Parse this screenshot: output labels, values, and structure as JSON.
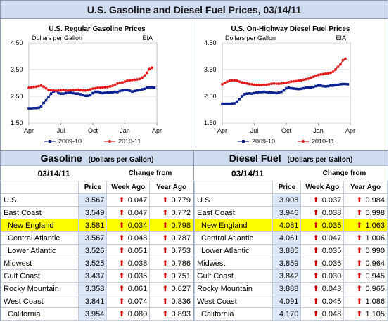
{
  "title": "U.S. Gasoline and Diesel Fuel Prices, 03/14/11",
  "chart_data": [
    {
      "type": "line",
      "title": "U.S. Regular Gasoline Prices",
      "ylabel": "Dollars per Gallon",
      "source": "EIA",
      "ylim": [
        1.5,
        4.5
      ],
      "yticks": [
        "4.50",
        "3.50",
        "2.50",
        "1.50"
      ],
      "xticks": [
        "Apr",
        "Jul",
        "Oct",
        "Jan",
        "Apr"
      ],
      "xlim": [
        0,
        52
      ],
      "series": [
        {
          "name": "2009-10",
          "color": "#0b1f8f",
          "x": [
            0,
            1,
            2,
            3,
            4,
            5,
            6,
            7,
            8,
            9,
            10,
            11,
            12,
            13,
            14,
            15,
            16,
            17,
            18,
            19,
            20,
            21,
            22,
            23,
            24,
            25,
            26,
            27,
            28,
            29,
            30,
            31,
            32,
            33,
            34,
            35,
            36,
            37,
            38,
            39,
            40,
            41,
            42,
            43,
            44,
            45,
            46,
            47,
            48,
            49,
            50,
            51
          ],
          "values": [
            2.05,
            2.05,
            2.06,
            2.06,
            2.07,
            2.13,
            2.25,
            2.35,
            2.48,
            2.6,
            2.68,
            2.7,
            2.62,
            2.6,
            2.6,
            2.62,
            2.64,
            2.64,
            2.62,
            2.6,
            2.6,
            2.58,
            2.55,
            2.52,
            2.52,
            2.55,
            2.62,
            2.67,
            2.67,
            2.65,
            2.62,
            2.63,
            2.64,
            2.65,
            2.64,
            2.67,
            2.66,
            2.7,
            2.72,
            2.73,
            2.73,
            2.71,
            2.68,
            2.7,
            2.72,
            2.73,
            2.76,
            2.78,
            2.82,
            2.84,
            2.84,
            2.82
          ]
        },
        {
          "name": "2010-11",
          "color": "#e31a1c",
          "x": [
            0,
            1,
            2,
            3,
            4,
            5,
            6,
            7,
            8,
            9,
            10,
            11,
            12,
            13,
            14,
            15,
            16,
            17,
            18,
            19,
            20,
            21,
            22,
            23,
            24,
            25,
            26,
            27,
            28,
            29,
            30,
            31,
            32,
            33,
            34,
            35,
            36,
            37,
            38,
            39,
            40,
            41,
            42,
            43,
            44,
            45,
            46,
            47,
            48,
            49,
            50
          ],
          "values": [
            2.82,
            2.84,
            2.85,
            2.86,
            2.88,
            2.9,
            2.86,
            2.8,
            2.74,
            2.73,
            2.72,
            2.71,
            2.72,
            2.72,
            2.74,
            2.72,
            2.72,
            2.73,
            2.74,
            2.74,
            2.75,
            2.73,
            2.72,
            2.72,
            2.73,
            2.76,
            2.79,
            2.8,
            2.82,
            2.82,
            2.83,
            2.84,
            2.85,
            2.87,
            2.89,
            2.93,
            2.98,
            3.0,
            3.02,
            3.05,
            3.08,
            3.1,
            3.11,
            3.12,
            3.13,
            3.15,
            3.2,
            3.28,
            3.38,
            3.52,
            3.57
          ]
        }
      ]
    },
    {
      "type": "line",
      "title": "U.S. On-Highway Diesel Fuel Prices",
      "ylabel": "Dollars per Gallon",
      "source": "EIA",
      "ylim": [
        1.5,
        4.5
      ],
      "yticks": [
        "4.50",
        "3.50",
        "2.50",
        "1.50"
      ],
      "xticks": [
        "Apr",
        "Jul",
        "Oct",
        "Jan",
        "Apr"
      ],
      "xlim": [
        0,
        52
      ],
      "series": [
        {
          "name": "2009-10",
          "color": "#0b1f8f",
          "x": [
            0,
            1,
            2,
            3,
            4,
            5,
            6,
            7,
            8,
            9,
            10,
            11,
            12,
            13,
            14,
            15,
            16,
            17,
            18,
            19,
            20,
            21,
            22,
            23,
            24,
            25,
            26,
            27,
            28,
            29,
            30,
            31,
            32,
            33,
            34,
            35,
            36,
            37,
            38,
            39,
            40,
            41,
            42,
            43,
            44,
            45,
            46,
            47,
            48,
            49,
            50,
            51
          ],
          "values": [
            2.22,
            2.22,
            2.22,
            2.22,
            2.23,
            2.24,
            2.3,
            2.4,
            2.5,
            2.58,
            2.6,
            2.61,
            2.6,
            2.62,
            2.64,
            2.66,
            2.66,
            2.67,
            2.66,
            2.64,
            2.64,
            2.63,
            2.62,
            2.64,
            2.67,
            2.72,
            2.8,
            2.82,
            2.8,
            2.79,
            2.78,
            2.77,
            2.78,
            2.8,
            2.82,
            2.83,
            2.82,
            2.85,
            2.88,
            2.9,
            2.9,
            2.88,
            2.87,
            2.88,
            2.9,
            2.9,
            2.92,
            2.93,
            2.95,
            2.96,
            2.96,
            2.95
          ]
        },
        {
          "name": "2010-11",
          "color": "#e31a1c",
          "x": [
            0,
            1,
            2,
            3,
            4,
            5,
            6,
            7,
            8,
            9,
            10,
            11,
            12,
            13,
            14,
            15,
            16,
            17,
            18,
            19,
            20,
            21,
            22,
            23,
            24,
            25,
            26,
            27,
            28,
            29,
            30,
            31,
            32,
            33,
            34,
            35,
            36,
            37,
            38,
            39,
            40,
            41,
            42,
            43,
            44,
            45,
            46,
            47,
            48,
            49,
            50
          ],
          "values": [
            2.95,
            3.0,
            3.05,
            3.08,
            3.1,
            3.1,
            3.08,
            3.05,
            3.02,
            3.0,
            2.98,
            2.96,
            2.95,
            2.93,
            2.92,
            2.92,
            2.92,
            2.93,
            2.93,
            2.95,
            2.97,
            2.98,
            2.97,
            2.97,
            2.98,
            2.99,
            3.01,
            3.03,
            3.05,
            3.06,
            3.07,
            3.08,
            3.1,
            3.12,
            3.14,
            3.16,
            3.2,
            3.23,
            3.27,
            3.3,
            3.32,
            3.33,
            3.35,
            3.36,
            3.38,
            3.42,
            3.5,
            3.6,
            3.7,
            3.85,
            3.91
          ]
        }
      ]
    }
  ],
  "gasoline": {
    "heading": "Gasoline",
    "units": "(Dollars per Gallon)",
    "date": "03/14/11",
    "change_from": "Change from",
    "col_price": "Price",
    "col_week": "Week Ago",
    "col_year": "Year Ago",
    "rows": [
      {
        "region": "U.S.",
        "price": "3.567",
        "week": "0.047",
        "year": "0.779",
        "sub": false,
        "highlight": false
      },
      {
        "region": "East Coast",
        "price": "3.549",
        "week": "0.047",
        "year": "0.772",
        "sub": false,
        "highlight": false
      },
      {
        "region": "New England",
        "price": "3.581",
        "week": "0.034",
        "year": "0.798",
        "sub": true,
        "highlight": true
      },
      {
        "region": "Central Atlantic",
        "price": "3.567",
        "week": "0.048",
        "year": "0.787",
        "sub": true,
        "highlight": false
      },
      {
        "region": "Lower Atlantic",
        "price": "3.526",
        "week": "0.051",
        "year": "0.753",
        "sub": true,
        "highlight": false
      },
      {
        "region": "Midwest",
        "price": "3.525",
        "week": "0.038",
        "year": "0.786",
        "sub": false,
        "highlight": false
      },
      {
        "region": "Gulf Coast",
        "price": "3.437",
        "week": "0.035",
        "year": "0.751",
        "sub": false,
        "highlight": false
      },
      {
        "region": "Rocky Mountain",
        "price": "3.358",
        "week": "0.061",
        "year": "0.627",
        "sub": false,
        "highlight": false
      },
      {
        "region": "West Coast",
        "price": "3.841",
        "week": "0.074",
        "year": "0.836",
        "sub": false,
        "highlight": false
      },
      {
        "region": "California",
        "price": "3.954",
        "week": "0.080",
        "year": "0.893",
        "sub": true,
        "highlight": false
      }
    ]
  },
  "diesel": {
    "heading": "Diesel Fuel",
    "units": "(Dollars per Gallon)",
    "date": "03/14/11",
    "change_from": "Change from",
    "col_price": "Price",
    "col_week": "Week Ago",
    "col_year": "Year Ago",
    "rows": [
      {
        "region": "U.S.",
        "price": "3.908",
        "week": "0.037",
        "year": "0.984",
        "sub": false,
        "highlight": false
      },
      {
        "region": "East Coast",
        "price": "3.946",
        "week": "0.038",
        "year": "0.998",
        "sub": false,
        "highlight": false
      },
      {
        "region": "New England",
        "price": "4.081",
        "week": "0.035",
        "year": "1.063",
        "sub": true,
        "highlight": true
      },
      {
        "region": "Central Atlantic",
        "price": "4.061",
        "week": "0.047",
        "year": "1.006",
        "sub": true,
        "highlight": false
      },
      {
        "region": "Lower Atlantic",
        "price": "3.885",
        "week": "0.035",
        "year": "0.990",
        "sub": true,
        "highlight": false
      },
      {
        "region": "Midwest",
        "price": "3.859",
        "week": "0.036",
        "year": "0.964",
        "sub": false,
        "highlight": false
      },
      {
        "region": "Gulf Coast",
        "price": "3.842",
        "week": "0.030",
        "year": "0.945",
        "sub": false,
        "highlight": false
      },
      {
        "region": "Rocky Mountain",
        "price": "3.888",
        "week": "0.043",
        "year": "0.965",
        "sub": false,
        "highlight": false
      },
      {
        "region": "West Coast",
        "price": "4.091",
        "week": "0.045",
        "year": "1.086",
        "sub": false,
        "highlight": false
      },
      {
        "region": "California",
        "price": "4.170",
        "week": "0.048",
        "year": "1.105",
        "sub": true,
        "highlight": false
      }
    ]
  }
}
